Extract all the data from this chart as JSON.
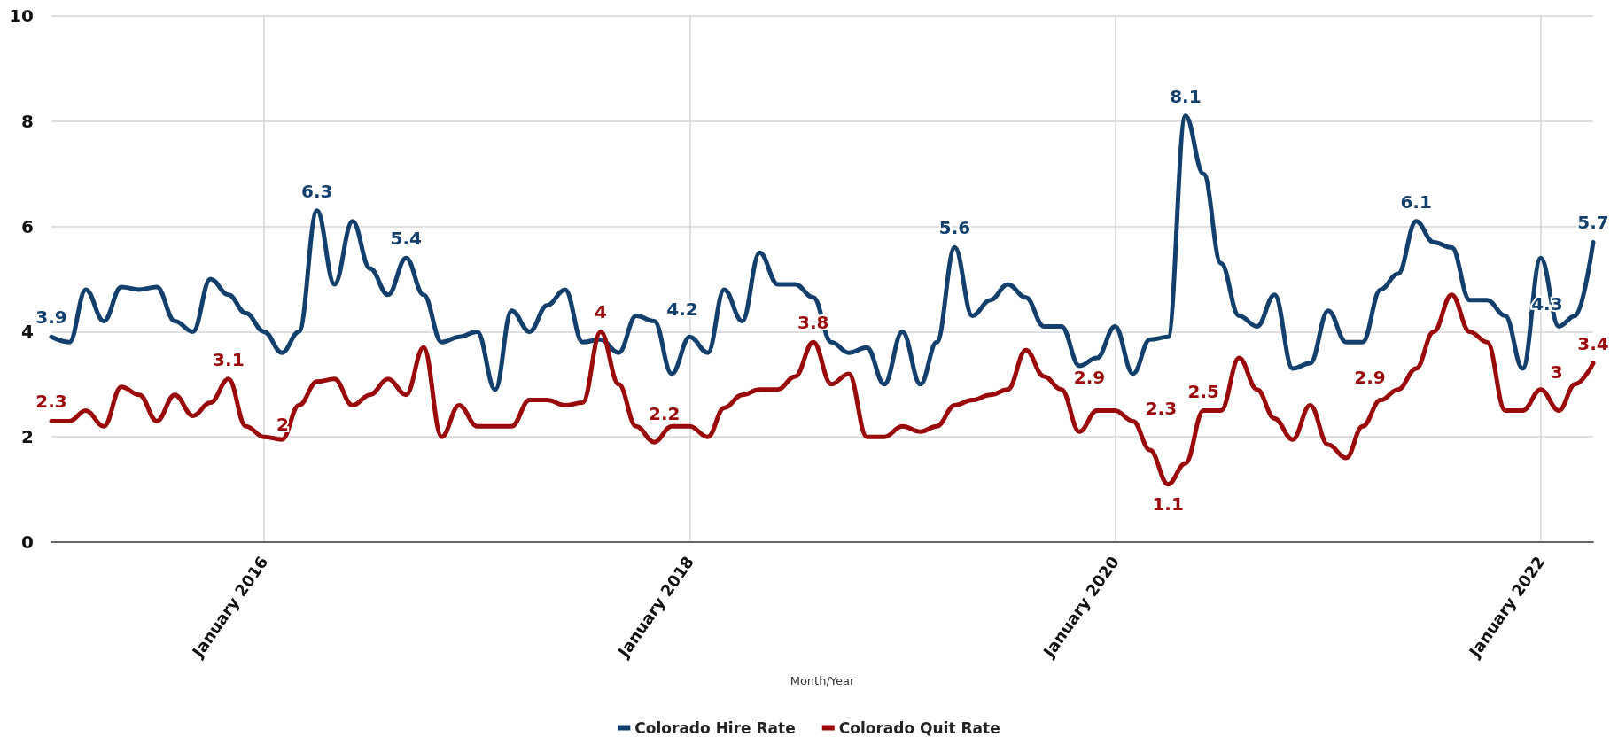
{
  "chart_data": {
    "type": "line",
    "xlabel": "Month/Year",
    "x": [
      "2015-01",
      "2015-02",
      "2015-03",
      "2015-04",
      "2015-05",
      "2015-06",
      "2015-07",
      "2015-08",
      "2015-09",
      "2015-10",
      "2015-11",
      "2015-12",
      "2016-01",
      "2016-02",
      "2016-03",
      "2016-04",
      "2016-05",
      "2016-06",
      "2016-07",
      "2016-08",
      "2016-09",
      "2016-10",
      "2016-11",
      "2016-12",
      "2017-01",
      "2017-02",
      "2017-03",
      "2017-04",
      "2017-05",
      "2017-06",
      "2017-07",
      "2017-08",
      "2017-09",
      "2017-10",
      "2017-11",
      "2017-12",
      "2018-01",
      "2018-02",
      "2018-03",
      "2018-04",
      "2018-05",
      "2018-06",
      "2018-07",
      "2018-08",
      "2018-09",
      "2018-10",
      "2018-11",
      "2018-12",
      "2019-01",
      "2019-02",
      "2019-03",
      "2019-04",
      "2019-05",
      "2019-06",
      "2019-07",
      "2019-08",
      "2019-09",
      "2019-10",
      "2019-11",
      "2019-12",
      "2020-01",
      "2020-02",
      "2020-03",
      "2020-04",
      "2020-05",
      "2020-06",
      "2020-07",
      "2020-08",
      "2020-09",
      "2020-10",
      "2020-11",
      "2020-12",
      "2021-01",
      "2021-02",
      "2021-03",
      "2021-04",
      "2021-05",
      "2021-06",
      "2021-07",
      "2021-08",
      "2021-09",
      "2021-10",
      "2021-11",
      "2021-12",
      "2022-01",
      "2022-02",
      "2022-03",
      "2022-04"
    ],
    "series": [
      {
        "name": "Colorado Hire Rate",
        "color": "#123f6b",
        "values": [
          3.9,
          3.8,
          4.8,
          4.2,
          4.85,
          4.8,
          4.85,
          4.2,
          4.0,
          5.0,
          4.7,
          4.35,
          4.0,
          3.6,
          4.0,
          6.3,
          4.9,
          6.1,
          5.2,
          4.7,
          5.4,
          4.7,
          3.8,
          3.9,
          4.0,
          2.9,
          4.4,
          4.0,
          4.5,
          4.8,
          3.8,
          3.85,
          3.6,
          4.3,
          4.2,
          3.2,
          3.9,
          3.6,
          4.8,
          4.2,
          5.5,
          4.9,
          4.9,
          4.65,
          3.8,
          3.6,
          3.7,
          3.0,
          4.0,
          3.0,
          3.8,
          5.6,
          4.3,
          4.6,
          4.9,
          4.65,
          4.1,
          4.1,
          3.35,
          3.5,
          4.1,
          3.2,
          3.85,
          3.9,
          8.1,
          7.0,
          5.3,
          4.3,
          4.1,
          4.7,
          3.3,
          3.4,
          4.4,
          3.8,
          3.8,
          4.8,
          5.1,
          6.1,
          5.7,
          5.6,
          4.6,
          4.6,
          4.3,
          3.3,
          5.4,
          4.1,
          4.3,
          5.7
        ],
        "value_labels": [
          "3.9",
          null,
          null,
          null,
          null,
          null,
          null,
          null,
          null,
          null,
          null,
          null,
          null,
          null,
          null,
          "6.3",
          null,
          null,
          null,
          null,
          "5.4",
          null,
          null,
          null,
          null,
          null,
          null,
          null,
          null,
          null,
          null,
          null,
          null,
          null,
          "4.2",
          null,
          null,
          null,
          null,
          null,
          null,
          null,
          null,
          null,
          null,
          null,
          null,
          null,
          null,
          null,
          null,
          "5.6",
          null,
          null,
          null,
          null,
          null,
          null,
          null,
          null,
          null,
          null,
          null,
          null,
          "8.1",
          null,
          null,
          null,
          null,
          null,
          null,
          null,
          null,
          null,
          null,
          null,
          null,
          "6.1",
          null,
          null,
          null,
          null,
          null,
          null,
          null,
          null,
          "4.3",
          "5.7"
        ]
      },
      {
        "name": "Colorado Quit Rate",
        "color": "#9b0a0a",
        "values": [
          2.3,
          2.3,
          2.5,
          2.2,
          2.95,
          2.8,
          2.3,
          2.8,
          2.4,
          2.65,
          3.1,
          2.2,
          2.0,
          1.95,
          2.6,
          3.05,
          3.1,
          2.6,
          2.8,
          3.1,
          2.8,
          3.7,
          2.0,
          2.6,
          2.2,
          2.2,
          2.2,
          2.7,
          2.7,
          2.6,
          2.65,
          4.0,
          3.0,
          2.2,
          1.9,
          2.2,
          2.2,
          2.0,
          2.55,
          2.8,
          2.9,
          2.9,
          3.15,
          3.8,
          3.0,
          3.2,
          2.0,
          2.0,
          2.2,
          2.1,
          2.2,
          2.6,
          2.7,
          2.8,
          2.9,
          3.65,
          3.15,
          2.9,
          2.1,
          2.5,
          2.5,
          2.3,
          1.75,
          1.1,
          1.5,
          2.5,
          2.5,
          3.5,
          2.9,
          2.35,
          1.95,
          2.6,
          1.85,
          1.6,
          2.2,
          2.7,
          2.9,
          3.3,
          4.0,
          4.7,
          4.0,
          3.8,
          2.5,
          2.5,
          2.9,
          2.5,
          3.0,
          3.4
        ],
        "value_labels": [
          "2.3",
          null,
          null,
          null,
          null,
          null,
          null,
          null,
          null,
          null,
          "3.1",
          null,
          "2",
          null,
          null,
          null,
          null,
          null,
          null,
          null,
          null,
          null,
          null,
          null,
          null,
          null,
          null,
          null,
          null,
          null,
          null,
          "4",
          null,
          "2.2",
          null,
          null,
          null,
          null,
          null,
          null,
          null,
          null,
          null,
          "3.8",
          null,
          null,
          null,
          null,
          null,
          null,
          null,
          null,
          null,
          null,
          null,
          null,
          null,
          "2.9",
          null,
          null,
          null,
          "2.3",
          null,
          "1.1",
          null,
          "2.5",
          null,
          null,
          null,
          null,
          null,
          null,
          null,
          null,
          null,
          null,
          "2.9",
          null,
          null,
          null,
          null,
          null,
          null,
          null,
          null,
          null,
          "3",
          "3.4"
        ]
      }
    ],
    "xlim": [
      "2015-01",
      "2022-04"
    ],
    "xticks": [
      {
        "value": "2016-01",
        "label": "January 2016"
      },
      {
        "value": "2018-01",
        "label": "January 2018"
      },
      {
        "value": "2020-01",
        "label": "January 2020"
      },
      {
        "value": "2022-01",
        "label": "January 2022"
      }
    ],
    "ylim": [
      0,
      10
    ],
    "yticks": [
      0,
      2,
      4,
      6,
      8,
      10
    ],
    "grid": true,
    "legend": "bottom",
    "marker": "none",
    "line_style": "solid"
  }
}
